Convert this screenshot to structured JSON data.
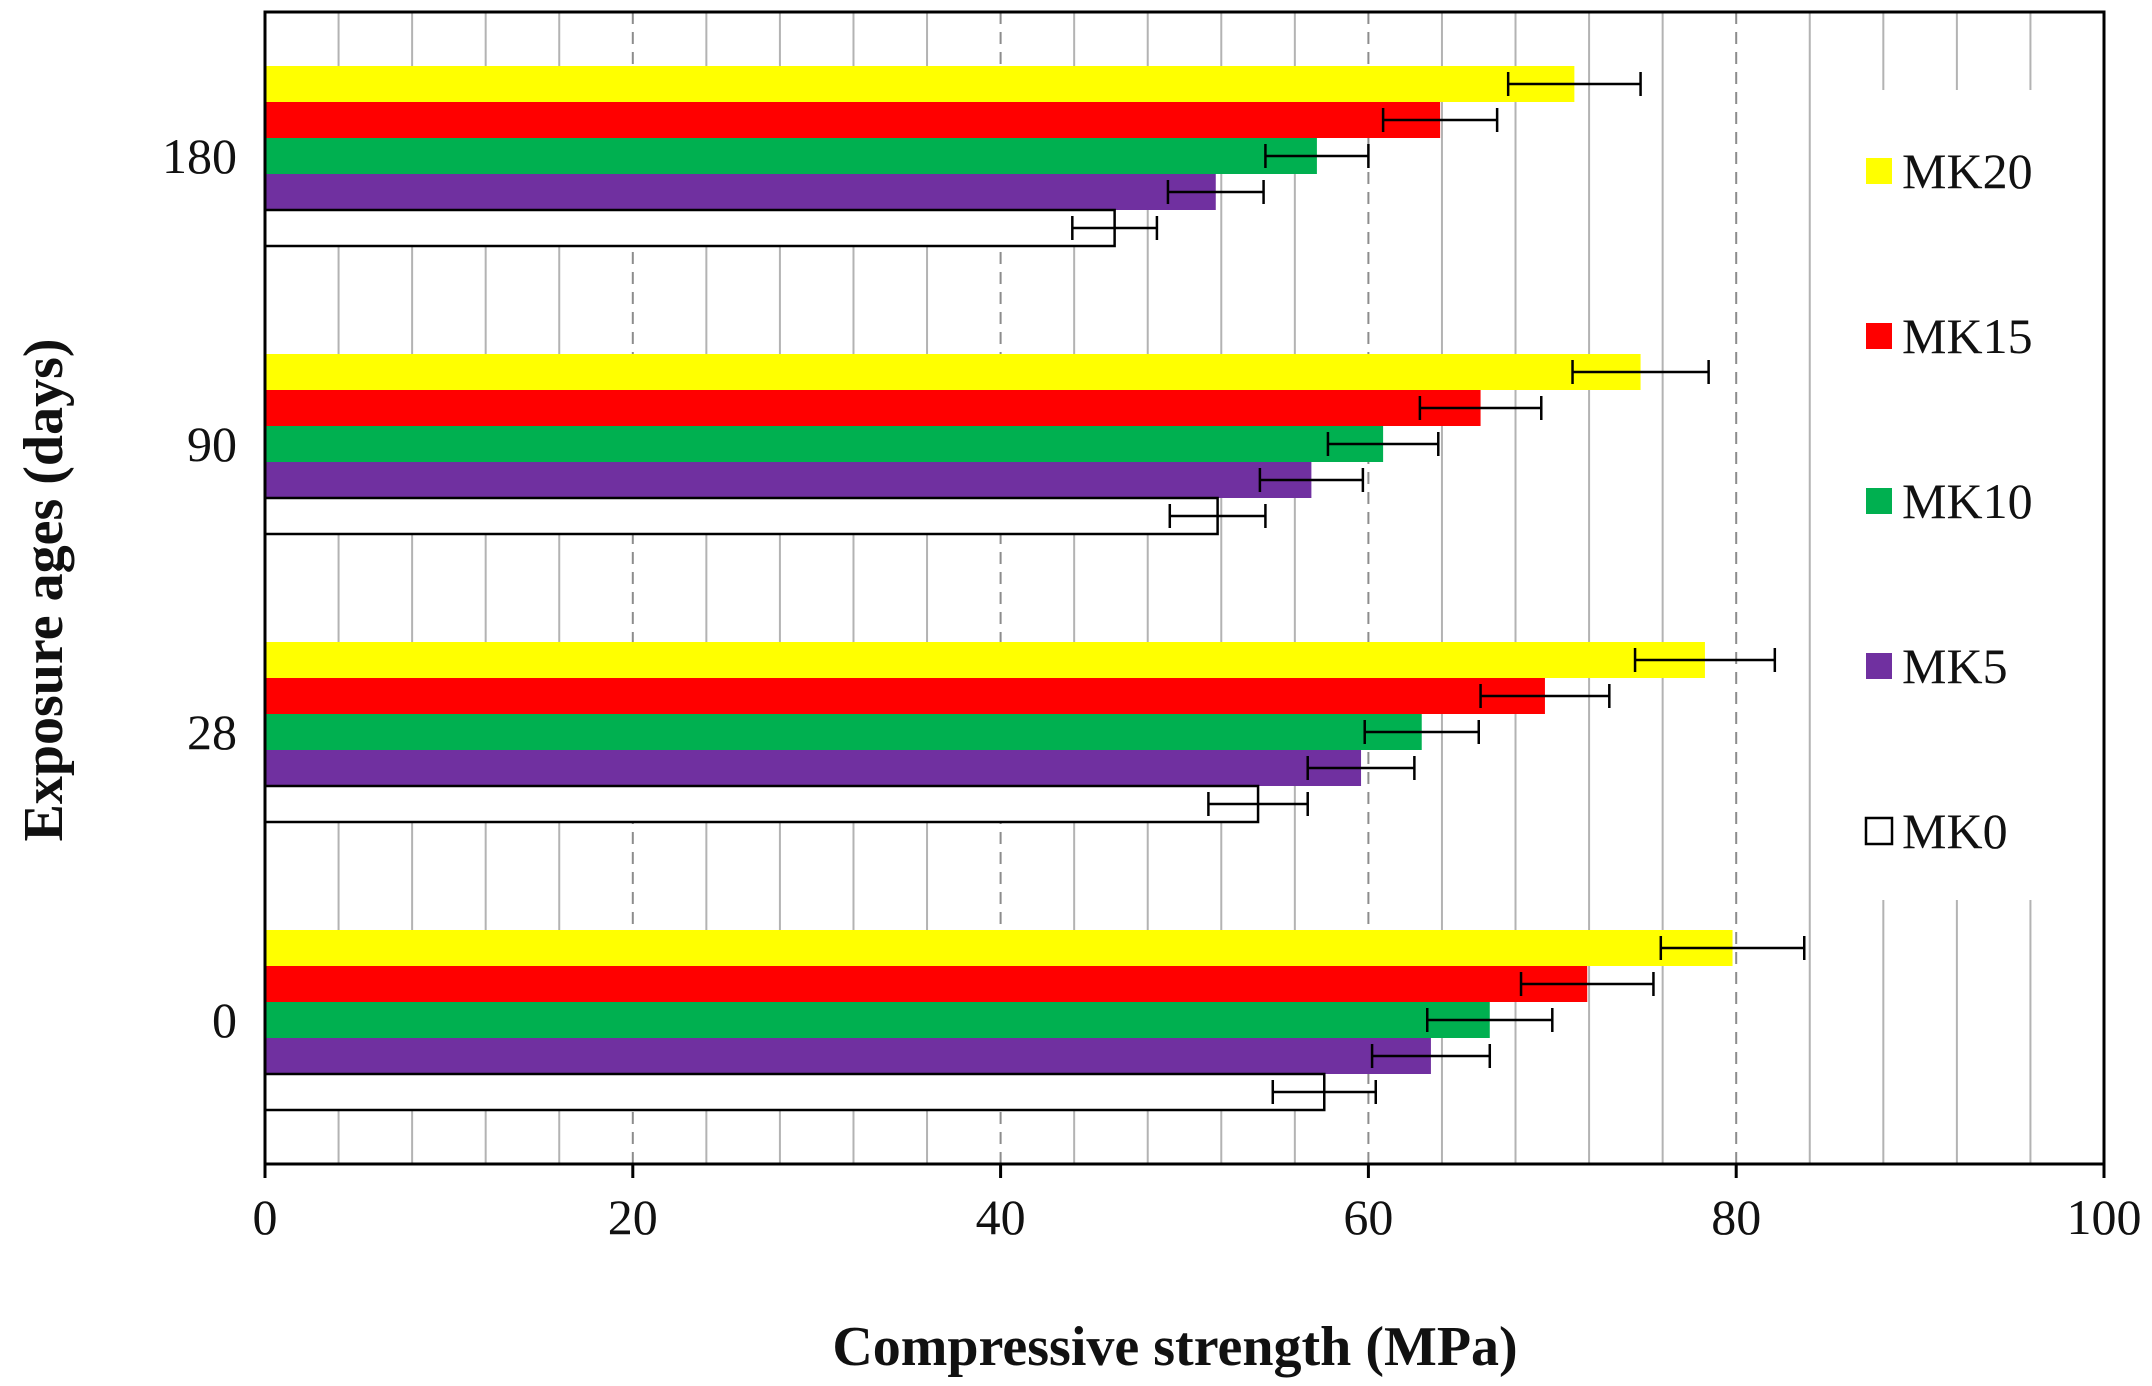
{
  "chart_data": {
    "type": "bar",
    "orientation": "horizontal",
    "xlabel": "Compressive strength  (MPa)",
    "ylabel": "Exposure ages (days)",
    "xlim": [
      0,
      100
    ],
    "x_ticks": [
      "0",
      "20",
      "40",
      "60",
      "80",
      "100"
    ],
    "categories": [
      "180",
      "90",
      "28",
      "0"
    ],
    "grid": "vertical lines: dashed major at 20 MPa steps, solid minor at 4 MPa steps",
    "legend_position": "right",
    "series": [
      {
        "name": "MK20",
        "color": "#ffff00",
        "values": [
          71.2,
          74.8,
          78.3,
          79.8
        ],
        "errors": [
          3.6,
          3.7,
          3.8,
          3.9
        ]
      },
      {
        "name": "MK15",
        "color": "#ff0000",
        "values": [
          63.9,
          66.1,
          69.6,
          71.9
        ],
        "errors": [
          3.1,
          3.3,
          3.5,
          3.6
        ]
      },
      {
        "name": "MK10",
        "color": "#00b050",
        "values": [
          57.2,
          60.8,
          62.9,
          66.6
        ],
        "errors": [
          2.8,
          3.0,
          3.1,
          3.4
        ]
      },
      {
        "name": "MK5",
        "color": "#7030a0",
        "values": [
          51.7,
          56.9,
          59.6,
          63.4
        ],
        "errors": [
          2.6,
          2.8,
          2.9,
          3.2
        ]
      },
      {
        "name": "MK0",
        "color": "#ffffff",
        "values": [
          46.2,
          51.8,
          54.0,
          57.6
        ],
        "errors": [
          2.3,
          2.6,
          2.7,
          2.8
        ]
      }
    ]
  }
}
